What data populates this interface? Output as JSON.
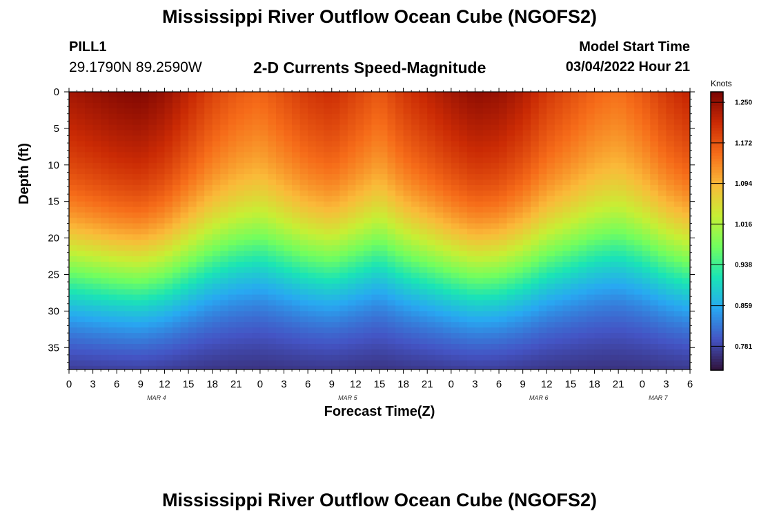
{
  "titles": {
    "main": "Mississippi River Outflow Ocean Cube (NGOFS2)",
    "bottom_repeat": "Mississippi River Outflow Ocean Cube (NGOFS2)"
  },
  "station": {
    "name": "PILL1",
    "coordinates": "29.1790N  89.2590W"
  },
  "model_start": {
    "label": "Model Start Time",
    "value": "03/04/2022 Hour 21"
  },
  "chart_data": {
    "type": "heatmap",
    "title": "2-D Currents Speed-Magnitude",
    "xlabel": "Forecast Time(Z)",
    "ylabel": "Depth (ft)",
    "x_ticks": [
      "0",
      "3",
      "6",
      "9",
      "12",
      "15",
      "18",
      "21",
      "0",
      "3",
      "6",
      "9",
      "12",
      "15",
      "18",
      "21",
      "0",
      "3",
      "6",
      "9",
      "12",
      "15",
      "18",
      "21",
      "0",
      "3",
      "6"
    ],
    "x_range_hours": [
      0,
      78
    ],
    "day_labels": [
      {
        "text": "MAR 4",
        "hour": 11
      },
      {
        "text": "MAR 5",
        "hour": 35
      },
      {
        "text": "MAR 6",
        "hour": 59
      },
      {
        "text": "MAR 7",
        "hour": 74
      }
    ],
    "y_ticks": [
      0,
      5,
      10,
      15,
      20,
      25,
      30,
      35
    ],
    "y_range_ft": [
      0,
      38
    ],
    "y_inverted": true,
    "colorbar": {
      "unit": "Knots",
      "tick_labels": [
        "1.250",
        "1.172",
        "1.094",
        "1.016",
        "0.938",
        "0.859",
        "0.781"
      ],
      "tick_values": [
        1.25,
        1.172,
        1.094,
        1.016,
        0.938,
        0.859,
        0.781
      ],
      "range": [
        0.735,
        1.27
      ],
      "colormap": [
        "#30123b",
        "#4454c4",
        "#28a8f2",
        "#1ae4b6",
        "#72fe5e",
        "#c7ef34",
        "#faba39",
        "#f66c19",
        "#ca2a04",
        "#7a0403"
      ]
    },
    "surface_speed_knots_by_hour": [
      [
        0,
        1.24
      ],
      [
        3,
        1.25
      ],
      [
        6,
        1.26
      ],
      [
        9,
        1.265
      ],
      [
        12,
        1.25
      ],
      [
        15,
        1.22
      ],
      [
        18,
        1.19
      ],
      [
        21,
        1.17
      ],
      [
        24,
        1.16
      ],
      [
        27,
        1.18
      ],
      [
        30,
        1.2
      ],
      [
        33,
        1.21
      ],
      [
        36,
        1.19
      ],
      [
        39,
        1.17
      ],
      [
        42,
        1.2
      ],
      [
        45,
        1.22
      ],
      [
        48,
        1.24
      ],
      [
        51,
        1.255
      ],
      [
        54,
        1.25
      ],
      [
        57,
        1.23
      ],
      [
        60,
        1.2
      ],
      [
        63,
        1.18
      ],
      [
        66,
        1.16
      ],
      [
        69,
        1.15
      ],
      [
        72,
        1.17
      ],
      [
        75,
        1.2
      ],
      [
        78,
        1.22
      ]
    ],
    "bottom_speed_knots": 0.76,
    "cell_size_hours": 1,
    "cell_size_ft": 0.75
  }
}
